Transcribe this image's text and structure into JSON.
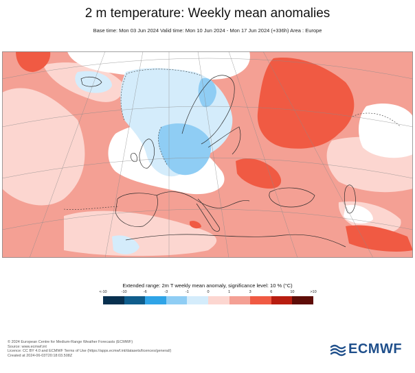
{
  "title": "2 m temperature: Weekly mean anomalies",
  "subtitle": "Base time: Mon 03 Jun 2024 Valid time: Mon 10 Jun 2024 - Mon 17 Jun 2024 (+336h) Area : Europe",
  "legend": {
    "title": "Extended range: 2m T weekly mean anomaly, significance level: 10 % (°C)",
    "ticks": [
      "<-10",
      "-10",
      "-6",
      "-3",
      "-1",
      "0",
      "1",
      "3",
      "6",
      "10",
      ">10"
    ],
    "colors": [
      "#08304f",
      "#0f5d8c",
      "#2fa4e7",
      "#8fcdf4",
      "#d4ecfb",
      "#fcd6d0",
      "#f4a094",
      "#f05a43",
      "#b81d10",
      "#5e0d08"
    ]
  },
  "footer": [
    "© 2024 European Centre for Medium-Range Weather Forecasts (ECMWF)",
    "Source: www.ecmwf.int",
    "Licence: CC BY 4.0 and ECMWF Terms of Use (https://apps.ecmwf.int/datasets/licences/general/)",
    "Created at 2024-06-03T20:18:03.508Z"
  ],
  "logo_text": "ECMWF"
}
